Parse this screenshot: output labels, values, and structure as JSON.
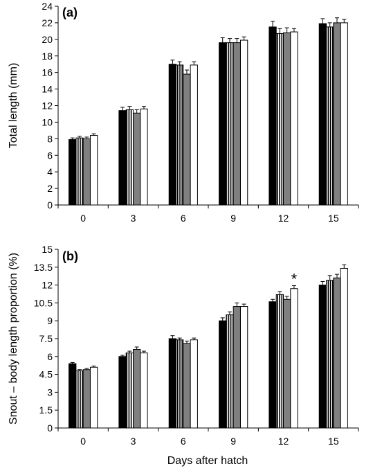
{
  "xlabel": "Days after hatch",
  "chart_data": [
    {
      "type": "bar",
      "panel": "(a)",
      "title": "",
      "ylabel": "Total length (mm)",
      "categories": [
        "0",
        "3",
        "6",
        "9",
        "12",
        "15"
      ],
      "ylim": [
        0,
        24
      ],
      "yticks": [
        "0",
        "2",
        "4",
        "6",
        "8",
        "10",
        "12",
        "14",
        "16",
        "18",
        "20",
        "22",
        "24"
      ],
      "series": [
        {
          "fill": "black",
          "values": [
            7.9,
            11.4,
            17.0,
            19.6,
            21.5,
            21.9
          ],
          "errors": [
            0.2,
            0.4,
            0.5,
            0.6,
            0.7,
            0.6
          ]
        },
        {
          "fill": "striped",
          "values": [
            8.1,
            11.5,
            16.9,
            19.6,
            20.7,
            21.5
          ],
          "errors": [
            0.2,
            0.4,
            0.4,
            0.5,
            0.6,
            0.5
          ]
        },
        {
          "fill": "gray",
          "values": [
            8.0,
            11.1,
            15.8,
            19.6,
            20.8,
            22.0
          ],
          "errors": [
            0.2,
            0.4,
            0.5,
            0.5,
            0.6,
            0.6
          ]
        },
        {
          "fill": "white",
          "values": [
            8.4,
            11.6,
            16.9,
            19.9,
            20.9,
            22.0
          ],
          "errors": [
            0.2,
            0.3,
            0.4,
            0.4,
            0.4,
            0.4
          ]
        }
      ],
      "annotations": []
    },
    {
      "type": "bar",
      "panel": "(b)",
      "title": "",
      "ylabel": "Snout – body length proportion (%)",
      "categories": [
        "0",
        "3",
        "6",
        "9",
        "12",
        "15"
      ],
      "ylim": [
        0,
        15
      ],
      "yticks": [
        "0",
        "1.5",
        "3",
        "4.5",
        "6",
        "7.5",
        "9",
        "10.5",
        "12",
        "13.5",
        "15"
      ],
      "series": [
        {
          "fill": "black",
          "values": [
            5.4,
            6.0,
            7.5,
            9.0,
            10.6,
            12.0
          ],
          "errors": [
            0.1,
            0.1,
            0.25,
            0.25,
            0.2,
            0.3
          ]
        },
        {
          "fill": "striped",
          "values": [
            4.8,
            6.3,
            7.4,
            9.5,
            11.2,
            12.4
          ],
          "errors": [
            0.1,
            0.15,
            0.15,
            0.25,
            0.25,
            0.4
          ]
        },
        {
          "fill": "gray",
          "values": [
            4.9,
            6.6,
            7.1,
            10.2,
            10.8,
            12.6
          ],
          "errors": [
            0.1,
            0.2,
            0.2,
            0.3,
            0.25,
            0.3
          ]
        },
        {
          "fill": "white",
          "values": [
            5.1,
            6.3,
            7.4,
            10.2,
            11.7,
            13.4
          ],
          "errors": [
            0.1,
            0.15,
            0.15,
            0.2,
            0.25,
            0.3
          ]
        }
      ],
      "annotations": [
        {
          "text": "*",
          "category": "12",
          "series": 3
        }
      ]
    }
  ]
}
